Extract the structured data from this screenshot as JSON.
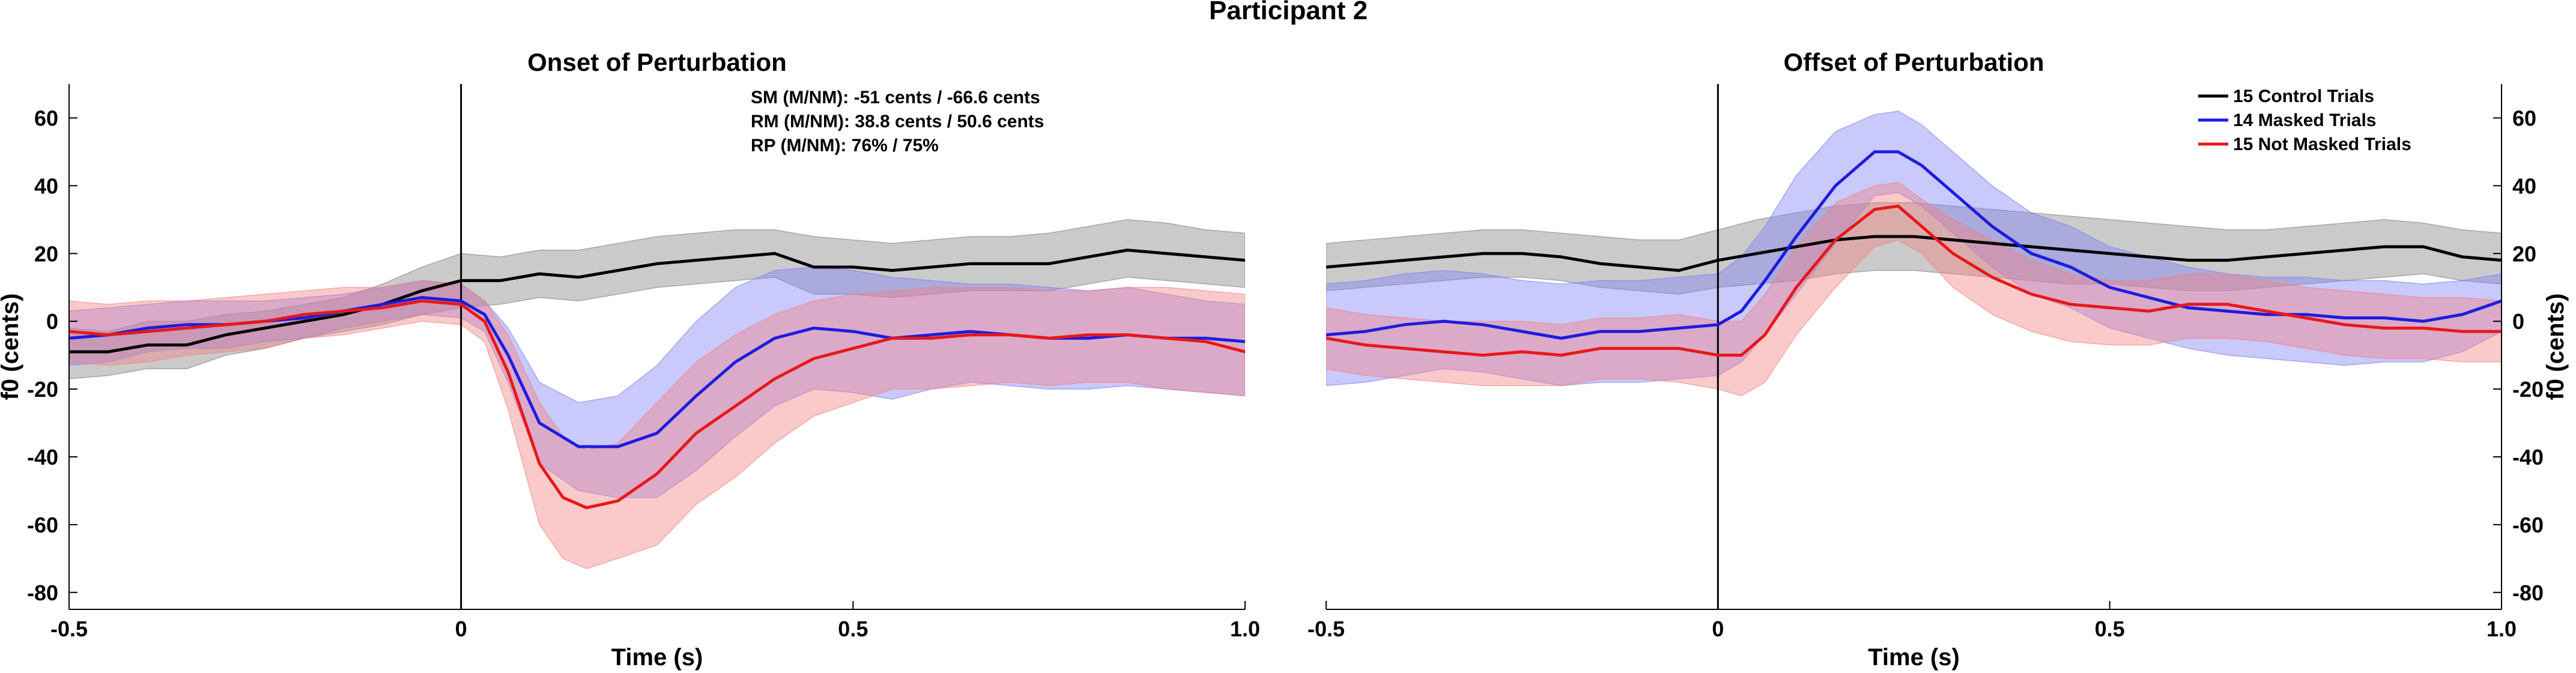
{
  "figure_title": "Participant 2",
  "chart_data": [
    {
      "type": "line",
      "title": "Onset of Perturbation",
      "xlabel": "Time (s)",
      "ylabel": "f0 (cents)",
      "xlim": [
        -0.5,
        1.0
      ],
      "ylim": [
        -85,
        70
      ],
      "x_ticks": [
        -0.5,
        0,
        0.5,
        1.0
      ],
      "x_tick_labels": [
        "-0.5",
        "0",
        "0.5",
        "1.0"
      ],
      "y_ticks": [
        -80,
        -60,
        -40,
        -20,
        0,
        20,
        40,
        60
      ],
      "y_tick_labels": [
        "-80",
        "-60",
        "-40",
        "-20",
        "0",
        "20",
        "40",
        "60"
      ],
      "y_axis_side": "left",
      "vline_x": 0,
      "annotations": [
        "SM (M/NM): -51 cents / -66.6 cents",
        "RM (M/NM): 38.8 cents / 50.6 cents",
        "RP (M/NM): 76% / 75%"
      ],
      "series": [
        {
          "color": "#000000",
          "band_color": "#808080",
          "x": [
            -0.5,
            -0.45,
            -0.4,
            -0.35,
            -0.3,
            -0.25,
            -0.2,
            -0.15,
            -0.1,
            -0.05,
            0,
            0.05,
            0.1,
            0.15,
            0.2,
            0.25,
            0.3,
            0.35,
            0.4,
            0.45,
            0.5,
            0.55,
            0.6,
            0.65,
            0.7,
            0.75,
            0.8,
            0.85,
            0.9,
            0.95,
            1.0
          ],
          "mean": [
            -9,
            -9,
            -7,
            -7,
            -4,
            -2,
            0,
            2,
            5,
            9,
            12,
            12,
            14,
            13,
            15,
            17,
            18,
            19,
            20,
            16,
            16,
            15,
            16,
            17,
            17,
            17,
            19,
            21,
            20,
            19,
            18
          ],
          "upper": [
            -2,
            -3,
            0,
            0,
            2,
            3,
            5,
            7,
            11,
            16,
            20,
            19,
            21,
            21,
            23,
            25,
            26,
            27,
            27,
            25,
            24,
            23,
            24,
            25,
            25,
            26,
            28,
            30,
            29,
            27,
            26
          ],
          "lower": [
            -17,
            -16,
            -14,
            -14,
            -10,
            -8,
            -5,
            -3,
            -1,
            2,
            4,
            5,
            7,
            6,
            8,
            10,
            11,
            12,
            13,
            8,
            8,
            7,
            8,
            9,
            9,
            9,
            11,
            13,
            12,
            11,
            10
          ]
        },
        {
          "color": "#1c1ce0",
          "band_color": "#7f7ff5",
          "x": [
            -0.5,
            -0.45,
            -0.4,
            -0.35,
            -0.3,
            -0.25,
            -0.2,
            -0.15,
            -0.1,
            -0.05,
            0,
            0.03,
            0.06,
            0.1,
            0.15,
            0.2,
            0.25,
            0.3,
            0.35,
            0.4,
            0.45,
            0.5,
            0.55,
            0.6,
            0.65,
            0.7,
            0.75,
            0.8,
            0.85,
            0.9,
            0.95,
            1.0
          ],
          "mean": [
            -5,
            -4,
            -2,
            -1,
            -1,
            0,
            1,
            3,
            5,
            7,
            6,
            2,
            -10,
            -30,
            -37,
            -37,
            -33,
            -22,
            -12,
            -5,
            -2,
            -3,
            -5,
            -4,
            -3,
            -4,
            -5,
            -5,
            -4,
            -5,
            -5,
            -6
          ],
          "upper": [
            3,
            4,
            5,
            6,
            6,
            6,
            7,
            8,
            10,
            12,
            11,
            6,
            -2,
            -18,
            -24,
            -22,
            -13,
            0,
            10,
            15,
            16,
            15,
            13,
            12,
            11,
            11,
            10,
            9,
            10,
            8,
            6,
            5
          ],
          "lower": [
            -13,
            -12,
            -9,
            -8,
            -8,
            -6,
            -5,
            -2,
            0,
            2,
            1,
            -3,
            -18,
            -42,
            -50,
            -52,
            -52,
            -44,
            -34,
            -25,
            -20,
            -21,
            -23,
            -20,
            -18,
            -19,
            -20,
            -20,
            -19,
            -20,
            -21,
            -22
          ]
        },
        {
          "color": "#e81818",
          "band_color": "#f28080",
          "x": [
            -0.5,
            -0.45,
            -0.4,
            -0.35,
            -0.3,
            -0.25,
            -0.2,
            -0.15,
            -0.1,
            -0.05,
            0,
            0.03,
            0.06,
            0.1,
            0.13,
            0.16,
            0.2,
            0.25,
            0.3,
            0.35,
            0.4,
            0.45,
            0.5,
            0.55,
            0.6,
            0.65,
            0.7,
            0.75,
            0.8,
            0.85,
            0.9,
            0.95,
            1.0
          ],
          "mean": [
            -3,
            -4,
            -3,
            -2,
            -1,
            0,
            2,
            3,
            4,
            6,
            5,
            0,
            -15,
            -42,
            -52,
            -55,
            -53,
            -45,
            -33,
            -25,
            -17,
            -11,
            -8,
            -5,
            -5,
            -4,
            -4,
            -5,
            -4,
            -4,
            -5,
            -6,
            -9
          ],
          "upper": [
            6,
            5,
            6,
            6,
            7,
            8,
            9,
            10,
            10,
            12,
            11,
            6,
            -4,
            -24,
            -34,
            -38,
            -36,
            -24,
            -12,
            -4,
            2,
            6,
            8,
            9,
            10,
            10,
            10,
            9,
            9,
            10,
            10,
            9,
            8
          ],
          "lower": [
            -12,
            -13,
            -12,
            -10,
            -9,
            -8,
            -5,
            -4,
            -2,
            0,
            -1,
            -6,
            -26,
            -60,
            -70,
            -73,
            -70,
            -66,
            -54,
            -46,
            -36,
            -28,
            -24,
            -20,
            -20,
            -19,
            -18,
            -19,
            -18,
            -18,
            -20,
            -21,
            -22
          ]
        }
      ]
    },
    {
      "type": "line",
      "title": "Offset of Perturbation",
      "xlabel": "Time (s)",
      "ylabel": "f0 (cents)",
      "xlim": [
        -0.5,
        1.0
      ],
      "ylim": [
        -85,
        70
      ],
      "x_ticks": [
        -0.5,
        0,
        0.5,
        1.0
      ],
      "x_tick_labels": [
        "-0.5",
        "0",
        "0.5",
        "1.0"
      ],
      "y_ticks": [
        -80,
        -60,
        -40,
        -20,
        0,
        20,
        40,
        60
      ],
      "y_tick_labels": [
        "-80",
        "-60",
        "-40",
        "-20",
        "0",
        "20",
        "40",
        "60"
      ],
      "y_axis_side": "right",
      "vline_x": 0,
      "legend_position": "top-right",
      "series": [
        {
          "name": "15 Control Trials",
          "color": "#000000",
          "band_color": "#808080",
          "x": [
            -0.5,
            -0.45,
            -0.4,
            -0.35,
            -0.3,
            -0.25,
            -0.2,
            -0.15,
            -0.1,
            -0.05,
            0,
            0.05,
            0.1,
            0.15,
            0.2,
            0.25,
            0.3,
            0.35,
            0.4,
            0.45,
            0.5,
            0.55,
            0.6,
            0.65,
            0.7,
            0.75,
            0.8,
            0.85,
            0.9,
            0.95,
            1.0
          ],
          "mean": [
            16,
            17,
            18,
            19,
            20,
            20,
            19,
            17,
            16,
            15,
            18,
            20,
            22,
            24,
            25,
            25,
            24,
            23,
            22,
            21,
            20,
            19,
            18,
            18,
            19,
            20,
            21,
            22,
            22,
            19,
            18
          ],
          "upper": [
            23,
            24,
            25,
            26,
            27,
            27,
            26,
            25,
            24,
            24,
            27,
            30,
            32,
            34,
            35,
            35,
            34,
            33,
            32,
            31,
            30,
            29,
            28,
            27,
            27,
            28,
            29,
            30,
            29,
            27,
            26
          ],
          "lower": [
            9,
            10,
            11,
            12,
            13,
            13,
            12,
            10,
            9,
            8,
            10,
            11,
            12,
            14,
            15,
            15,
            14,
            13,
            12,
            11,
            11,
            10,
            9,
            9,
            10,
            11,
            12,
            13,
            14,
            12,
            11
          ]
        },
        {
          "name": "14 Masked Trials",
          "color": "#1c1ce0",
          "band_color": "#7f7ff5",
          "x": [
            -0.5,
            -0.45,
            -0.4,
            -0.35,
            -0.3,
            -0.25,
            -0.2,
            -0.15,
            -0.1,
            -0.05,
            0,
            0.03,
            0.06,
            0.1,
            0.15,
            0.2,
            0.23,
            0.26,
            0.3,
            0.35,
            0.4,
            0.45,
            0.5,
            0.55,
            0.6,
            0.65,
            0.7,
            0.75,
            0.8,
            0.85,
            0.9,
            0.95,
            1.0
          ],
          "mean": [
            -4,
            -3,
            -1,
            0,
            -1,
            -3,
            -5,
            -3,
            -3,
            -2,
            -1,
            3,
            12,
            25,
            40,
            50,
            50,
            46,
            38,
            28,
            20,
            16,
            10,
            7,
            4,
            3,
            2,
            2,
            1,
            1,
            0,
            2,
            6
          ],
          "upper": [
            11,
            12,
            14,
            15,
            14,
            12,
            11,
            12,
            12,
            13,
            14,
            19,
            28,
            43,
            56,
            61,
            62,
            58,
            50,
            40,
            32,
            28,
            22,
            19,
            16,
            14,
            13,
            13,
            12,
            12,
            11,
            12,
            14
          ],
          "lower": [
            -19,
            -18,
            -16,
            -14,
            -15,
            -17,
            -19,
            -18,
            -18,
            -17,
            -16,
            -12,
            -4,
            8,
            23,
            37,
            38,
            34,
            26,
            16,
            8,
            4,
            -2,
            -5,
            -8,
            -10,
            -11,
            -12,
            -13,
            -12,
            -12,
            -9,
            -3
          ]
        },
        {
          "name": "15 Not Masked Trials",
          "color": "#e81818",
          "band_color": "#f28080",
          "x": [
            -0.5,
            -0.45,
            -0.4,
            -0.35,
            -0.3,
            -0.25,
            -0.2,
            -0.15,
            -0.1,
            -0.05,
            0,
            0.03,
            0.06,
            0.1,
            0.15,
            0.2,
            0.23,
            0.26,
            0.3,
            0.35,
            0.4,
            0.45,
            0.5,
            0.55,
            0.6,
            0.65,
            0.7,
            0.75,
            0.8,
            0.85,
            0.9,
            0.95,
            1.0
          ],
          "mean": [
            -5,
            -7,
            -8,
            -9,
            -10,
            -9,
            -10,
            -8,
            -8,
            -8,
            -10,
            -10,
            -4,
            10,
            24,
            33,
            34,
            28,
            20,
            13,
            8,
            5,
            4,
            3,
            5,
            5,
            3,
            1,
            -1,
            -2,
            -2,
            -3,
            -3
          ],
          "upper": [
            4,
            2,
            1,
            0,
            0,
            0,
            -1,
            1,
            1,
            2,
            0,
            0,
            8,
            22,
            35,
            40,
            41,
            36,
            30,
            24,
            18,
            14,
            12,
            12,
            14,
            14,
            12,
            10,
            9,
            8,
            7,
            7,
            6
          ],
          "lower": [
            -14,
            -16,
            -17,
            -18,
            -19,
            -19,
            -19,
            -17,
            -17,
            -18,
            -20,
            -22,
            -18,
            -4,
            10,
            22,
            24,
            20,
            10,
            2,
            -3,
            -6,
            -7,
            -7,
            -5,
            -5,
            -6,
            -8,
            -10,
            -11,
            -11,
            -12,
            -12
          ]
        }
      ]
    }
  ]
}
